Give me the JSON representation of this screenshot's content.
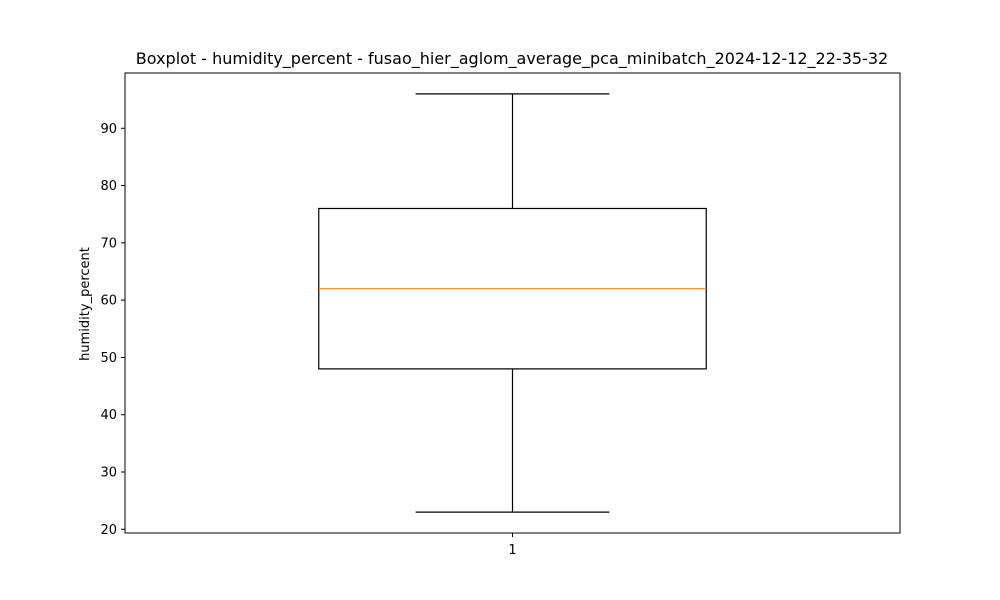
{
  "chart_data": {
    "type": "box",
    "title": "Boxplot - humidity_percent - fusao_hier_aglom_average_pca_minibatch_2024-12-12_22-35-32",
    "xlabel": "",
    "ylabel": "humidity_percent",
    "categories": [
      "1"
    ],
    "boxes": [
      {
        "category": "1",
        "whisker_low": 23,
        "q1": 48,
        "median": 62,
        "q3": 76,
        "whisker_high": 96
      }
    ],
    "ylim": [
      19.35,
      99.65
    ],
    "yticks": [
      20,
      30,
      40,
      50,
      60,
      70,
      80,
      90
    ],
    "grid": false,
    "colors": {
      "box": "#000000",
      "median": "#ff7f0e",
      "whisker": "#000000"
    }
  }
}
